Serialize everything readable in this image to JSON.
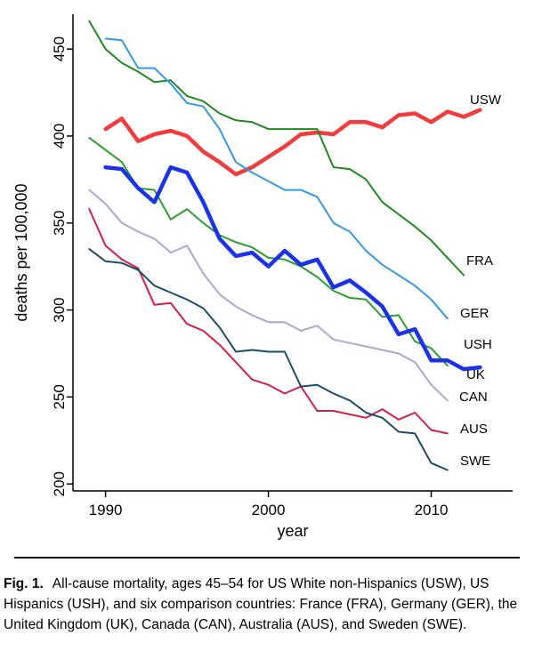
{
  "figure": {
    "caption_label": "Fig. 1.",
    "caption_text": "All-cause mortality, ages 45–54 for US White non-Hispanics (USW), US Hispanics (USH), and six comparison countries: France (FRA), Germany (GER), the United Kingdom (UK), Canada (CAN), Australia (AUS), and Sweden (SWE)."
  },
  "chart_data": {
    "type": "line",
    "title": "",
    "xlabel": "year",
    "ylabel": "deaths per 100,000",
    "xlim": [
      1988,
      2015
    ],
    "ylim": [
      196,
      470
    ],
    "xticks": [
      1990,
      2000,
      2010
    ],
    "yticks": [
      200,
      250,
      300,
      350,
      400,
      450
    ],
    "grid": false,
    "legend": "labels at line ends",
    "series": [
      {
        "name": "USW",
        "color": "#f03c3c",
        "width": 4.5,
        "x": [
          1990,
          1991,
          1992,
          1993,
          1994,
          1995,
          1996,
          1997,
          1998,
          1999,
          2000,
          2001,
          2002,
          2003,
          2004,
          2005,
          2006,
          2007,
          2008,
          2009,
          2010,
          2011,
          2012,
          2013
        ],
        "y": [
          404,
          410,
          397,
          401,
          403,
          400,
          391,
          385,
          378,
          382,
          388,
          394,
          401,
          402,
          401,
          408,
          408,
          405,
          412,
          413,
          408,
          414,
          411,
          415
        ]
      },
      {
        "name": "FRA",
        "color": "#1f8a1f",
        "width": 2,
        "x": [
          1989,
          1990,
          1991,
          1992,
          1993,
          1994,
          1995,
          1996,
          1997,
          1998,
          1999,
          2000,
          2001,
          2002,
          2003,
          2004,
          2005,
          2006,
          2007,
          2008,
          2009,
          2010,
          2011,
          2012
        ],
        "y": [
          466,
          450,
          442,
          437,
          431,
          432,
          423,
          420,
          413,
          409,
          408,
          404,
          404,
          404,
          404,
          382,
          381,
          375,
          362,
          355,
          348,
          340,
          330,
          320
        ]
      },
      {
        "name": "GER",
        "color": "#3399e6",
        "width": 2,
        "x": [
          1990,
          1991,
          1992,
          1993,
          1994,
          1995,
          1996,
          1997,
          1998,
          1999,
          2000,
          2001,
          2002,
          2003,
          2004,
          2005,
          2006,
          2007,
          2008,
          2009,
          2010,
          2011
        ],
        "y": [
          456,
          455,
          439,
          439,
          430,
          419,
          417,
          404,
          385,
          379,
          374,
          369,
          369,
          365,
          350,
          345,
          334,
          326,
          320,
          314,
          306,
          295
        ]
      },
      {
        "name": "USH",
        "color": "#2e9e2e",
        "width": 2,
        "x": [
          1989,
          1990,
          1991,
          1992,
          1993,
          1994,
          1995,
          1996,
          1997,
          1998,
          1999,
          2000,
          2001,
          2002,
          2003,
          2004,
          2005,
          2006,
          2007,
          2008,
          2009,
          2010,
          2011
        ],
        "y": [
          399,
          392,
          385,
          370,
          369,
          352,
          358,
          350,
          343,
          339,
          336,
          330,
          329,
          325,
          319,
          311,
          307,
          306,
          296,
          297,
          282,
          278,
          268
        ]
      },
      {
        "name": "UK",
        "color": "#1a33e6",
        "width": 4.5,
        "x": [
          1990,
          1991,
          1992,
          1993,
          1994,
          1995,
          1996,
          1997,
          1998,
          1999,
          2000,
          2001,
          2002,
          2003,
          2004,
          2005,
          2006,
          2007,
          2008,
          2009,
          2010,
          2011,
          2012,
          2013
        ],
        "y": [
          382,
          381,
          370,
          362,
          382,
          379,
          362,
          341,
          331,
          333,
          325,
          334,
          326,
          329,
          313,
          317,
          310,
          302,
          286,
          289,
          271,
          271,
          266,
          267
        ]
      },
      {
        "name": "CAN",
        "color": "#a8a8d8",
        "width": 2,
        "x": [
          1989,
          1990,
          1991,
          1992,
          1993,
          1994,
          1995,
          1996,
          1997,
          1998,
          1999,
          2000,
          2001,
          2002,
          2003,
          2004,
          2005,
          2006,
          2007,
          2008,
          2009,
          2010,
          2011
        ],
        "y": [
          369,
          361,
          350,
          345,
          341,
          333,
          337,
          321,
          309,
          302,
          297,
          293,
          293,
          288,
          291,
          283,
          281,
          279,
          277,
          275,
          270,
          257,
          248
        ]
      },
      {
        "name": "AUS",
        "color": "#d11f4a",
        "width": 2,
        "x": [
          1989,
          1990,
          1991,
          1992,
          1993,
          1994,
          1995,
          1996,
          1997,
          1998,
          1999,
          2000,
          2001,
          2002,
          2003,
          2004,
          2005,
          2006,
          2007,
          2008,
          2009,
          2010,
          2011
        ],
        "y": [
          358,
          337,
          329,
          324,
          303,
          304,
          292,
          288,
          280,
          270,
          260,
          257,
          252,
          256,
          242,
          242,
          240,
          238,
          243,
          237,
          241,
          231,
          229
        ]
      },
      {
        "name": "SWE",
        "color": "#1a4d6b",
        "width": 2,
        "x": [
          1989,
          1990,
          1991,
          1992,
          1993,
          1994,
          1995,
          1996,
          1997,
          1998,
          1999,
          2000,
          2001,
          2002,
          2003,
          2004,
          2005,
          2006,
          2007,
          2008,
          2009,
          2010,
          2011
        ],
        "y": [
          335,
          328,
          327,
          323,
          314,
          310,
          306,
          301,
          290,
          276,
          277,
          276,
          276,
          256,
          257,
          252,
          248,
          241,
          238,
          230,
          229,
          212,
          208
        ]
      }
    ]
  }
}
